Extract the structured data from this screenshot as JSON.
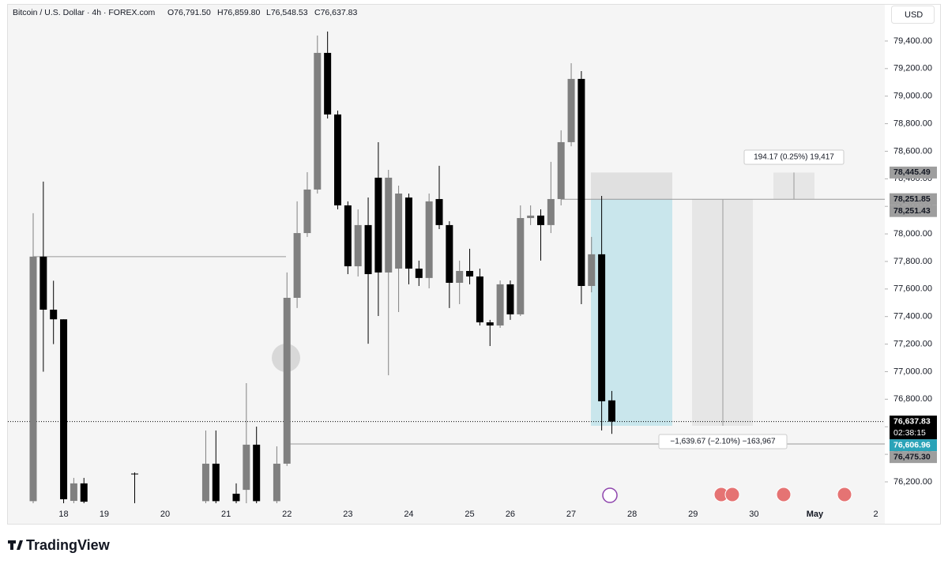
{
  "chart_data": {
    "type": "candlestick",
    "title": "Bitcoin / U.S. Dollar · 4h · FOREX.com",
    "ohlc_labels": [
      "O76,791.50",
      "H76,859.80",
      "L76,548.53",
      "C76,637.83"
    ],
    "currency": "USD",
    "brand": "TradingView",
    "countdown": "02:38:15",
    "up_color": "#808080",
    "down_color": "#000000",
    "grid": false,
    "categories": [
      null,
      null,
      null,
      "18",
      null,
      null,
      null,
      "19",
      null,
      null,
      null,
      null,
      null,
      "20",
      null,
      null,
      null,
      null,
      null,
      "21",
      null,
      null,
      null,
      null,
      null,
      "22",
      null,
      null,
      null,
      null,
      null,
      "23",
      null,
      null,
      null,
      null,
      null,
      "24",
      null,
      null,
      null,
      null,
      null,
      "25",
      null,
      null,
      null,
      "26",
      null,
      null,
      null,
      null,
      null,
      "27",
      null,
      null,
      null,
      null,
      null,
      "28",
      null,
      null,
      null,
      null,
      null,
      "29",
      null,
      null,
      null,
      null,
      null,
      "30",
      null,
      null,
      null,
      null,
      null,
      "May",
      null,
      null,
      null,
      null,
      null,
      "2"
    ],
    "open": [
      76060,
      77835,
      77450,
      77380,
      76062,
      76189,
      null,
      null,
      null,
      null,
      76260,
      null,
      null,
      null,
      null,
      null,
      null,
      76060,
      76332,
      null,
      76114,
      76142,
      76470,
      null,
      76060,
      76332,
      77536,
      78006,
      78322,
      79314,
      78867,
      78207,
      77765,
      78064,
      78408,
      77720,
      77748,
      78264,
      77748,
      77680,
      78253,
      78064,
      77645,
      77731,
      77691,
      77358,
      77335,
      77634,
      77416,
      78115,
      78133,
      78064,
      78253,
      78666,
      79125,
      77622,
      77852,
      76791.5,
      null,
      null,
      null,
      null,
      null,
      null,
      null,
      null,
      null,
      null,
      null,
      null,
      null,
      null,
      null,
      null,
      null,
      null,
      null,
      null,
      null,
      null,
      null,
      null,
      null,
      null
    ],
    "high": [
      78150,
      78380,
      77660,
      77380,
      76229,
      76229,
      null,
      null,
      null,
      null,
      76269,
      null,
      null,
      null,
      null,
      null,
      null,
      76573,
      76573,
      null,
      76189,
      76917,
      76601,
      null,
      76458,
      77720,
      78236,
      78448,
      79440,
      79469,
      78895,
      78236,
      78178,
      78264,
      78666,
      78465,
      78350,
      78293,
      77806,
      78293,
      78494,
      78092,
      77806,
      77892,
      77748,
      77376,
      77662,
      77662,
      78207,
      78207,
      78178,
      78523,
      78752,
      79239,
      79182,
      77978,
      78276,
      76859.8,
      null,
      null,
      null,
      null,
      null,
      null,
      null,
      null,
      null,
      null,
      null,
      null,
      null,
      null,
      null,
      null,
      null,
      null,
      null,
      null,
      null,
      null,
      null,
      null,
      null,
      null
    ],
    "low": [
      76045,
      77000,
      77200,
      76045,
      76045,
      76045,
      null,
      null,
      null,
      null,
      76045,
      null,
      null,
      null,
      null,
      null,
      null,
      76045,
      76045,
      null,
      76045,
      76045,
      76045,
      null,
      76045,
      76315,
      77462,
      77978,
      78293,
      78838,
      78178,
      77708,
      77691,
      77203,
      77404,
      76974,
      77433,
      77634,
      77622,
      77605,
      78035,
      77462,
      77490,
      77634,
      77335,
      77186,
      77318,
      77376,
      77404,
      78064,
      77806,
      78006,
      78207,
      78636,
      77490,
      77576,
      76573,
      76548.53,
      null,
      null,
      null,
      null,
      null,
      null,
      null,
      null,
      null,
      null,
      null,
      null,
      null,
      null,
      null,
      null,
      null,
      null,
      null,
      null,
      null,
      null,
      null,
      null,
      null,
      null
    ],
    "close": [
      77835,
      77450,
      77380,
      76074,
      76189,
      76056,
      null,
      null,
      null,
      null,
      76255,
      null,
      null,
      null,
      null,
      null,
      null,
      76332,
      76060,
      null,
      76060,
      76470,
      76060,
      null,
      76332,
      77536,
      78006,
      78322,
      79314,
      78867,
      78207,
      77765,
      78064,
      77708,
      77720,
      78408,
      78293,
      77748,
      77680,
      78236,
      78064,
      77645,
      77731,
      77691,
      77358,
      77335,
      77634,
      77416,
      78115,
      78133,
      78064,
      78253,
      78666,
      79125,
      77622,
      77852,
      76785,
      76637.83,
      null,
      null,
      null,
      null,
      null,
      null,
      null,
      null,
      null,
      null,
      null,
      null,
      null,
      null,
      null,
      null,
      null,
      null,
      null,
      null,
      null,
      null,
      null,
      null,
      null,
      null
    ],
    "ylim": [
      76045,
      79652
    ],
    "yticks": [
      {
        "value": 76200,
        "label": "76,200.00"
      },
      {
        "value": 76400,
        "label": "76,400.00"
      },
      {
        "value": 76600,
        "label": "76,600.00"
      },
      {
        "value": 76800,
        "label": "76,800.00"
      },
      {
        "value": 77000,
        "label": "77,000.00"
      },
      {
        "value": 77200,
        "label": "77,200.00"
      },
      {
        "value": 77400,
        "label": "77,400.00"
      },
      {
        "value": 77600,
        "label": "77,600.00"
      },
      {
        "value": 77800,
        "label": "77,800.00"
      },
      {
        "value": 78000,
        "label": "78,000.00"
      },
      {
        "value": 78200,
        "label": "78,200.00"
      },
      {
        "value": 78400,
        "label": "78,400.00"
      },
      {
        "value": 78600,
        "label": "78,600.00"
      },
      {
        "value": 78800,
        "label": "78,800.00"
      },
      {
        "value": 79000,
        "label": "79,000.00"
      },
      {
        "value": 79200,
        "label": "79,200.00"
      },
      {
        "value": 79400,
        "label": "79,400.00"
      }
    ],
    "price_lines": [
      {
        "value": 78445.49,
        "label": "78,445.49",
        "color": "#9e9e9e"
      },
      {
        "value": 78251.85,
        "label": "78,251.85",
        "color": "#9e9e9e"
      },
      {
        "value": 78251.43,
        "label": "78,251.43",
        "color": "#9e9e9e"
      },
      {
        "value": 76637.83,
        "label": "76,637.83",
        "color": "#000000"
      },
      {
        "value": 76606.96,
        "label": "76,606.96",
        "color": "#2aa3b8"
      },
      {
        "value": 76475.3,
        "label": "76,475.30",
        "color": "#9e9e9e"
      }
    ],
    "annotations": [
      "194.17 (0.25%) 19,417",
      "−1,639.67 (−2.10%) −163,967"
    ]
  }
}
